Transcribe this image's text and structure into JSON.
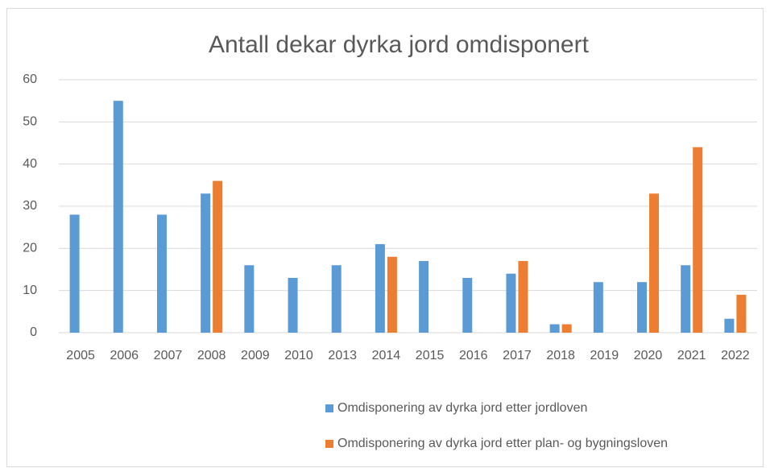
{
  "chart_data": {
    "type": "bar",
    "title": "Antall dekar dyrka jord omdisponert",
    "categories": [
      "2005",
      "2006",
      "2007",
      "2008",
      "2009",
      "2010",
      "2013",
      "2014",
      "2015",
      "2016",
      "2017",
      "2018",
      "2019",
      "2020",
      "2021",
      "2022"
    ],
    "series": [
      {
        "name": "Omdisponering av dyrka jord etter jordloven",
        "color": "#5b9bd5",
        "values": [
          28,
          55,
          28,
          33,
          16,
          13,
          16,
          21,
          17,
          13,
          14,
          2,
          12,
          12,
          16,
          3.3
        ]
      },
      {
        "name": "Omdisponering av dyrka jord etter plan- og bygningsloven",
        "color": "#ed7d31",
        "values": [
          null,
          null,
          null,
          36,
          null,
          null,
          null,
          18,
          null,
          null,
          17,
          2,
          null,
          33,
          44,
          9
        ]
      }
    ],
    "ylim": [
      0,
      60
    ],
    "yticks": [
      0,
      10,
      20,
      30,
      40,
      50,
      60
    ],
    "grid": true,
    "legend": "bottom"
  }
}
